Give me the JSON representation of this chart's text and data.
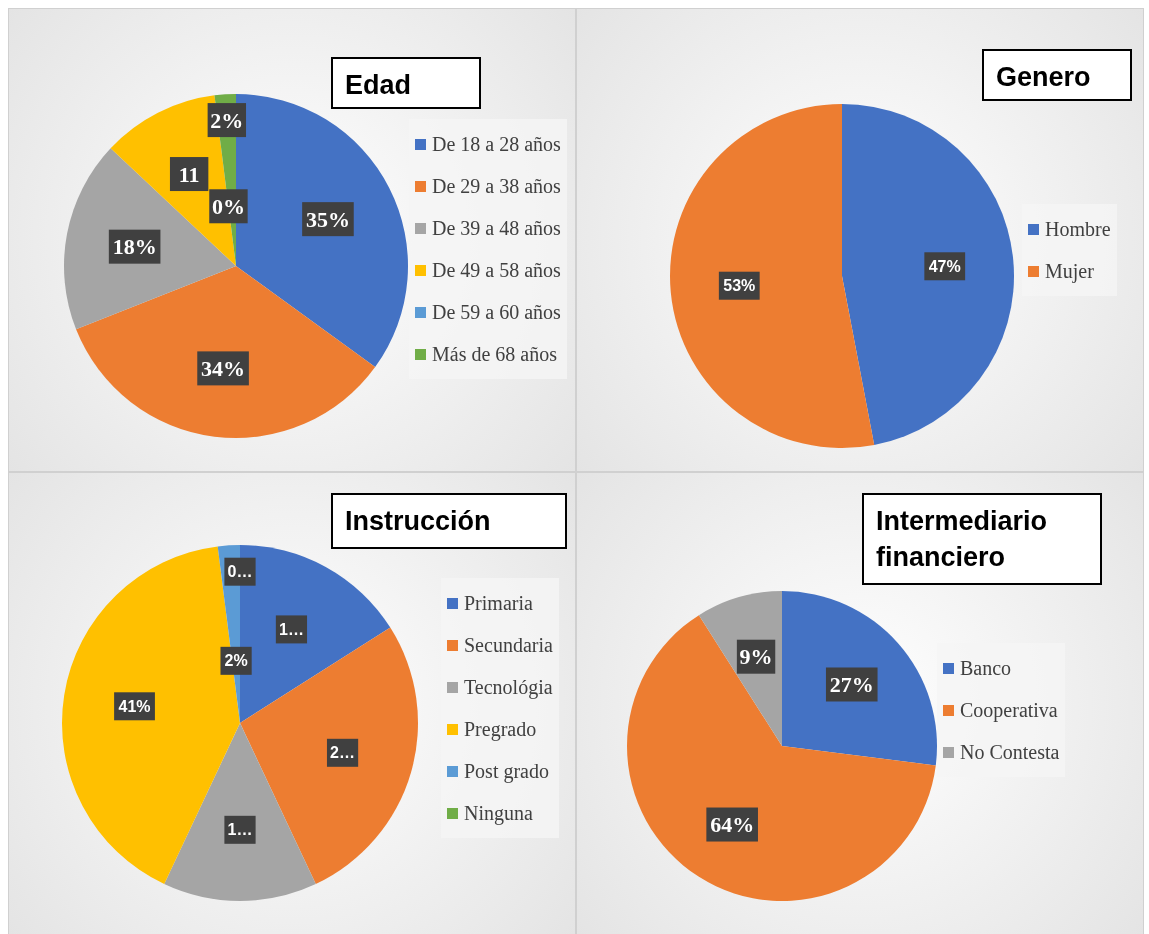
{
  "chart_data": [
    {
      "type": "pie",
      "title": "Edad",
      "categories": [
        "De 18 a 28 años",
        "De  29 a 38 años",
        "De 39 a 48 años",
        "De 49 a 58 años",
        "De 59 a 60 años",
        "Más de 68 años"
      ],
      "values": [
        35,
        34,
        18,
        11,
        0,
        2
      ],
      "colors": [
        "#4472c4",
        "#ed7d31",
        "#a5a5a5",
        "#ffc000",
        "#5b9bd5",
        "#70ad47"
      ],
      "value_labels": [
        "35%",
        "34%",
        "18%",
        "11",
        "0%",
        "2%"
      ],
      "legend": "right"
    },
    {
      "type": "pie",
      "title": "Genero",
      "categories": [
        "Hombre",
        "Mujer"
      ],
      "values": [
        47,
        53
      ],
      "colors": [
        "#4472c4",
        "#ed7d31"
      ],
      "value_labels": [
        "47%",
        "53%"
      ],
      "legend": "right"
    },
    {
      "type": "pie",
      "title": "Instrucción",
      "categories": [
        "Primaria",
        "Secundaria",
        "Tecnológia",
        "Pregrado",
        "Post grado",
        "Ninguna"
      ],
      "values": [
        16,
        27,
        14,
        41,
        2,
        0
      ],
      "colors": [
        "#4472c4",
        "#ed7d31",
        "#a5a5a5",
        "#ffc000",
        "#5b9bd5",
        "#70ad47"
      ],
      "value_labels": [
        "1…",
        "2…",
        "1…",
        "41%",
        "2%",
        "0…"
      ],
      "legend": "right"
    },
    {
      "type": "pie",
      "title": "Intermediario financiero",
      "categories": [
        "Banco",
        "Cooperativa",
        "No Contesta"
      ],
      "values": [
        27,
        64,
        9
      ],
      "colors": [
        "#4472c4",
        "#ed7d31",
        "#a5a5a5"
      ],
      "value_labels": [
        "27%",
        "64%",
        "9%"
      ],
      "legend": "right"
    }
  ]
}
